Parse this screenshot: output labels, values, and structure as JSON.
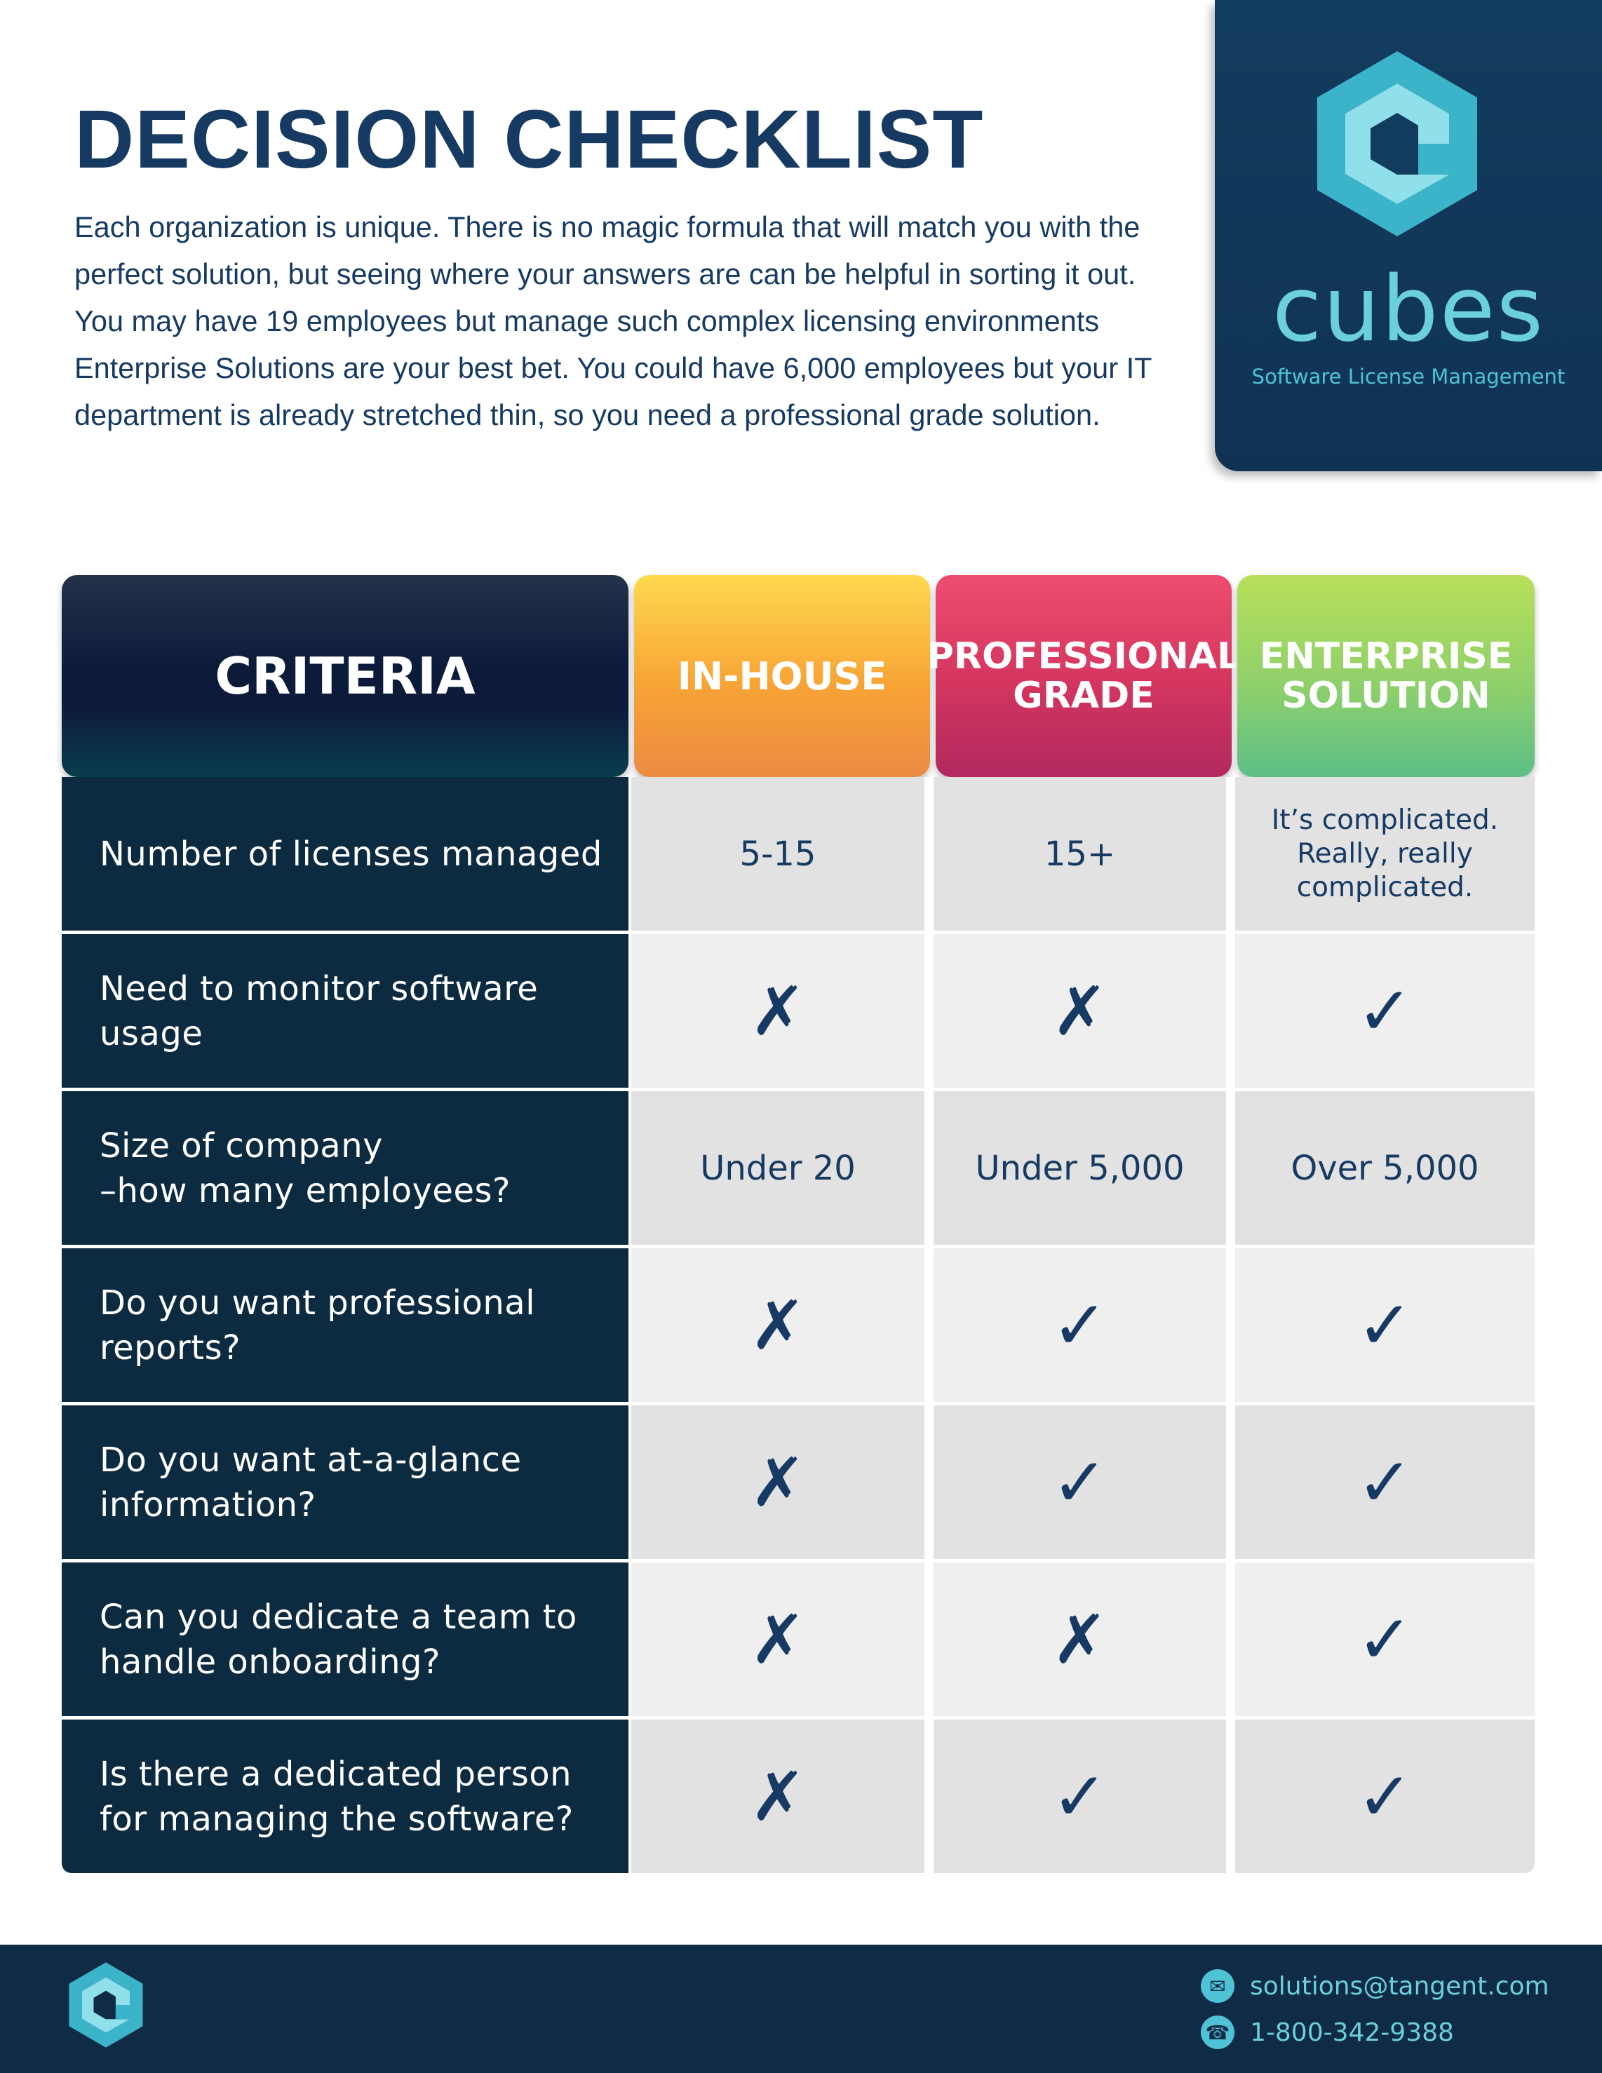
{
  "header": {
    "title": "DECISION CHECKLIST",
    "intro": "Each organization is unique. There is no magic formula that will match you with the perfect solution, but seeing where your answers are can be helpful in sorting it out. You may have 19 employees but manage such complex licensing environments Enterprise Solutions are your best bet. You could have 6,000 employees but your IT department is already stretched thin, so you need a professional grade solution."
  },
  "brand": {
    "name": "cubes",
    "tagline": "Software License Management",
    "logo_icon": "cubes-logo-icon",
    "colors": {
      "navy": "#103354",
      "teal": "#6ccfdc",
      "title": "#173a63"
    }
  },
  "table": {
    "headers": {
      "criteria": "CRITERIA",
      "inhouse": "IN-HOUSE",
      "pro_line1": "PROFESSIONAL",
      "pro_line2": "GRADE",
      "ent_line1": "ENTERPRISE",
      "ent_line2": "SOLUTION"
    },
    "rows": [
      {
        "criteria_l1": "Number of licenses managed",
        "criteria_l2": "",
        "inhouse": "5-15",
        "pro": "15+",
        "ent_l1": "It’s complicated.",
        "ent_l2": "Really, really",
        "ent_l3": "complicated."
      },
      {
        "criteria_l1": "Need to monitor software",
        "criteria_l2": "usage",
        "inhouse": "✗",
        "pro": "✗",
        "ent": "✓"
      },
      {
        "criteria_l1": "Size of company",
        "criteria_l2": "–how many employees?",
        "inhouse": "Under 20",
        "pro": "Under 5,000",
        "ent": "Over 5,000"
      },
      {
        "criteria_l1": "Do you want professional",
        "criteria_l2": "reports?",
        "inhouse": "✗",
        "pro": "✓",
        "ent": "✓"
      },
      {
        "criteria_l1": "Do you want at-a-glance",
        "criteria_l2": "information?",
        "inhouse": "✗",
        "pro": "✓",
        "ent": "✓"
      },
      {
        "criteria_l1": "Can you dedicate a team to",
        "criteria_l2": "handle onboarding?",
        "inhouse": "✗",
        "pro": "✗",
        "ent": "✓"
      },
      {
        "criteria_l1": "Is there a dedicated person",
        "criteria_l2": "for managing the software?",
        "inhouse": "✗",
        "pro": "✓",
        "ent": "✓"
      }
    ]
  },
  "footer": {
    "email": "solutions@tangent.com",
    "phone": "1-800-342-9388",
    "email_icon": "envelope-icon",
    "phone_icon": "phone-icon"
  }
}
